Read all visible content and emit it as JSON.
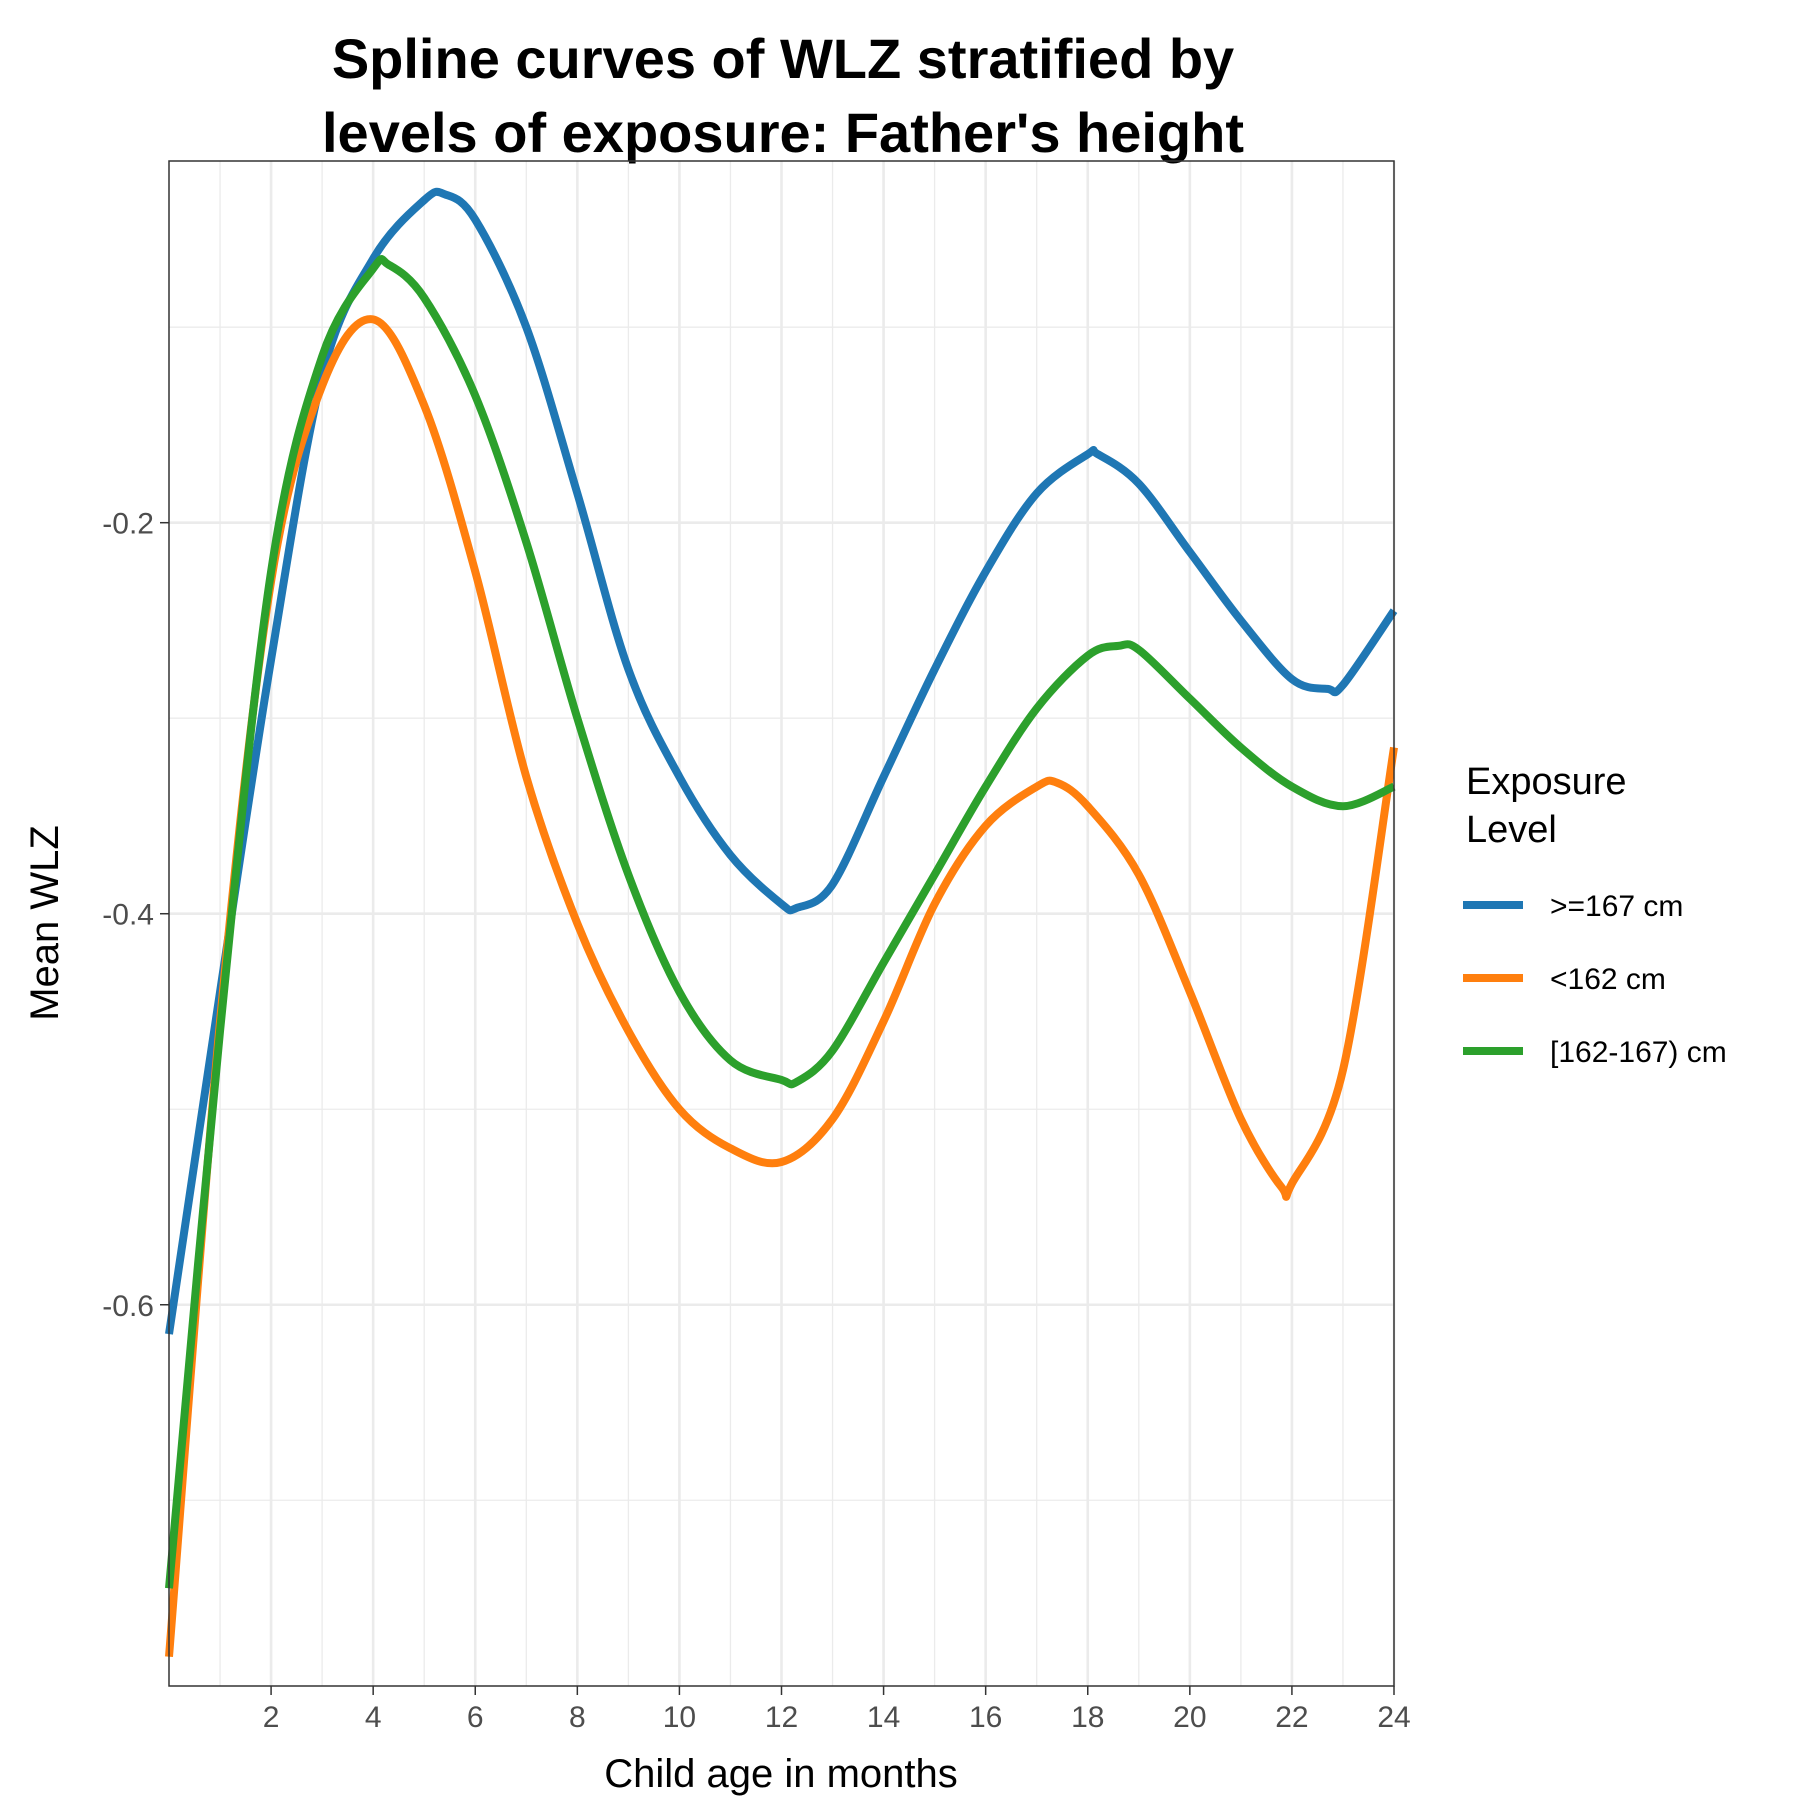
{
  "chart_data": {
    "type": "line",
    "title_lines": [
      "Spline curves of WLZ stratified by",
      "levels of exposure: Father's height"
    ],
    "xlabel": "Child age in months",
    "ylabel": "Mean WLZ",
    "xlim": [
      0,
      24
    ],
    "ylim": [
      -0.795,
      -0.015
    ],
    "x_ticks": [
      2,
      4,
      6,
      8,
      10,
      12,
      14,
      16,
      18,
      20,
      22,
      24
    ],
    "x_tick_labels": [
      "2",
      "4",
      "6",
      "8",
      "10",
      "12",
      "14",
      "16",
      "18",
      "20",
      "22",
      "24"
    ],
    "y_ticks": [
      -0.6,
      -0.4,
      -0.2
    ],
    "y_tick_labels": [
      "-0.6",
      "-0.4",
      "-0.2"
    ],
    "y_minor_ticks": [
      -0.7,
      -0.5,
      -0.3,
      -0.1
    ],
    "x_minor_ticks": [
      1,
      3,
      5,
      7,
      9,
      11,
      13,
      15,
      17,
      19,
      21,
      23
    ],
    "grid": true,
    "legend": {
      "title_lines": [
        "Exposure",
        "Level"
      ],
      "placement": "right"
    },
    "series": [
      {
        "name": ">=167 cm",
        "color": "#1f77b4",
        "points": [
          [
            0,
            -0.615
          ],
          [
            1,
            -0.44
          ],
          [
            2,
            -0.27
          ],
          [
            3,
            -0.125
          ],
          [
            4,
            -0.065
          ],
          [
            5,
            -0.035
          ],
          [
            5.4,
            -0.032
          ],
          [
            6,
            -0.045
          ],
          [
            7,
            -0.1
          ],
          [
            8,
            -0.185
          ],
          [
            9,
            -0.275
          ],
          [
            10,
            -0.33
          ],
          [
            11,
            -0.37
          ],
          [
            12,
            -0.395
          ],
          [
            12.3,
            -0.397
          ],
          [
            13,
            -0.385
          ],
          [
            14,
            -0.33
          ],
          [
            15,
            -0.275
          ],
          [
            16,
            -0.225
          ],
          [
            17,
            -0.185
          ],
          [
            18,
            -0.165
          ],
          [
            18.2,
            -0.165
          ],
          [
            19,
            -0.18
          ],
          [
            20,
            -0.215
          ],
          [
            21,
            -0.25
          ],
          [
            22,
            -0.28
          ],
          [
            22.7,
            -0.285
          ],
          [
            23,
            -0.283
          ],
          [
            24,
            -0.245
          ]
        ]
      },
      {
        "name": "<162 cm",
        "color": "#ff7f0e",
        "points": [
          [
            0,
            -0.78
          ],
          [
            1,
            -0.455
          ],
          [
            2,
            -0.23
          ],
          [
            3,
            -0.13
          ],
          [
            4,
            -0.096
          ],
          [
            5,
            -0.14
          ],
          [
            6,
            -0.225
          ],
          [
            7,
            -0.33
          ],
          [
            8,
            -0.405
          ],
          [
            9,
            -0.46
          ],
          [
            10,
            -0.5
          ],
          [
            11,
            -0.52
          ],
          [
            12,
            -0.527
          ],
          [
            13,
            -0.505
          ],
          [
            14,
            -0.455
          ],
          [
            15,
            -0.395
          ],
          [
            16,
            -0.355
          ],
          [
            17,
            -0.335
          ],
          [
            17.4,
            -0.333
          ],
          [
            18,
            -0.345
          ],
          [
            19,
            -0.38
          ],
          [
            20,
            -0.44
          ],
          [
            21,
            -0.505
          ],
          [
            21.8,
            -0.54
          ],
          [
            22,
            -0.538
          ],
          [
            23,
            -0.48
          ],
          [
            24,
            -0.315
          ]
        ]
      },
      {
        "name": "[162-167) cm",
        "color": "#2ca02c",
        "points": [
          [
            0,
            -0.745
          ],
          [
            1,
            -0.46
          ],
          [
            2,
            -0.225
          ],
          [
            3,
            -0.115
          ],
          [
            4,
            -0.07
          ],
          [
            4.3,
            -0.068
          ],
          [
            5,
            -0.085
          ],
          [
            6,
            -0.135
          ],
          [
            7,
            -0.21
          ],
          [
            8,
            -0.3
          ],
          [
            9,
            -0.38
          ],
          [
            10,
            -0.44
          ],
          [
            11,
            -0.475
          ],
          [
            12,
            -0.485
          ],
          [
            12.3,
            -0.486
          ],
          [
            13,
            -0.47
          ],
          [
            14,
            -0.425
          ],
          [
            15,
            -0.38
          ],
          [
            16,
            -0.335
          ],
          [
            17,
            -0.295
          ],
          [
            18,
            -0.268
          ],
          [
            18.6,
            -0.263
          ],
          [
            19,
            -0.265
          ],
          [
            20,
            -0.29
          ],
          [
            21,
            -0.315
          ],
          [
            22,
            -0.335
          ],
          [
            23,
            -0.345
          ],
          [
            24,
            -0.335
          ]
        ]
      }
    ]
  }
}
